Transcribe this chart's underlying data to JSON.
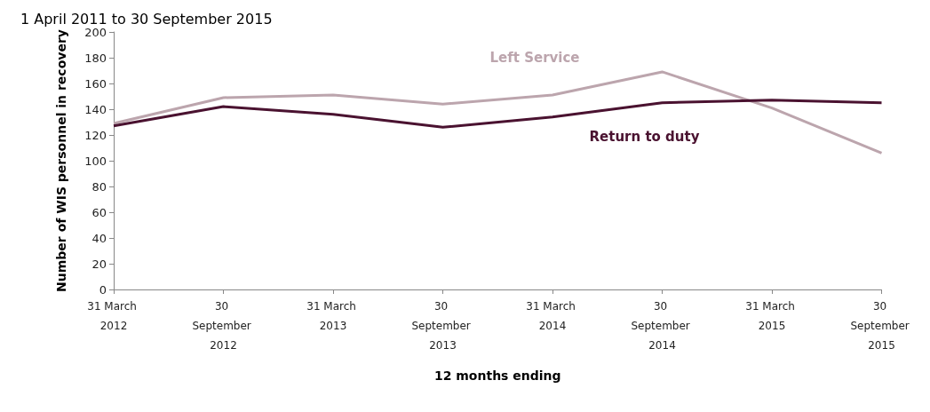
{
  "chart_data": {
    "type": "line",
    "title": "1 April 2011 to 30 September 2015",
    "xlabel": "12 months ending",
    "ylabel": "Number of WIS personnel in recovery",
    "categories": [
      "31 March 2012",
      "30 September 2012",
      "31 March 2013",
      "30 September 2013",
      "31 March 2014",
      "30 September 2014",
      "31 March 2015",
      "30 September 2015"
    ],
    "series": [
      {
        "name": "Left Service",
        "color": "#bca5ad",
        "values": [
          129,
          149,
          151,
          144,
          151,
          169,
          141,
          106
        ]
      },
      {
        "name": "Return to duty",
        "color": "#4a1230",
        "values": [
          127,
          142,
          136,
          126,
          134,
          145,
          147,
          145
        ]
      }
    ],
    "ylim": [
      0,
      200
    ],
    "yticks": [
      0,
      20,
      40,
      60,
      80,
      100,
      120,
      140,
      160,
      180,
      200
    ],
    "grid": false,
    "legend": false,
    "marker": "none",
    "line_style": "solid"
  }
}
